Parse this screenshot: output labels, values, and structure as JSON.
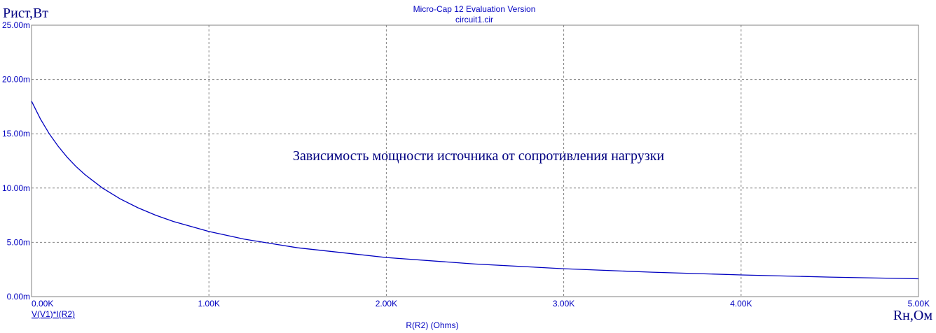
{
  "header": {
    "title": "Micro-Cap 12 Evaluation Version",
    "subtitle": "circuit1.cir"
  },
  "colors": {
    "axis_text": "#0000c0",
    "trace": "#0000c0",
    "annotation": "#000080",
    "grid": "#808080",
    "frame": "#808080"
  },
  "chart_data": {
    "type": "line",
    "title": "Micro-Cap 12 Evaluation Version",
    "subtitle": "circuit1.cir",
    "annotation": "Зависимость мощности источника от сопротивления нагрузки",
    "ylabel": "Рист,Вт",
    "xlabel_user": "Rн,Ом",
    "xlabel": "R(R2) (Ohms)",
    "grid": true,
    "xlim": [
      0,
      5000
    ],
    "ylim": [
      0,
      0.025
    ],
    "x_ticks": [
      {
        "value": 0,
        "label": "0.00K"
      },
      {
        "value": 1000,
        "label": "1.00K"
      },
      {
        "value": 2000,
        "label": "2.00K"
      },
      {
        "value": 3000,
        "label": "3.00K"
      },
      {
        "value": 4000,
        "label": "4.00K"
      },
      {
        "value": 5000,
        "label": "5.00K"
      }
    ],
    "y_ticks": [
      {
        "value": 0,
        "label": "0.00m"
      },
      {
        "value": 0.005,
        "label": "5.00m"
      },
      {
        "value": 0.01,
        "label": "10.00m"
      },
      {
        "value": 0.015,
        "label": "15.00m"
      },
      {
        "value": 0.02,
        "label": "20.00m"
      },
      {
        "value": 0.025,
        "label": "25.00m"
      }
    ],
    "series": [
      {
        "name": "V(V1)*I(R2)",
        "x": [
          0,
          50,
          100,
          150,
          200,
          250,
          300,
          400,
          500,
          600,
          700,
          800,
          1000,
          1200,
          1500,
          2000,
          2500,
          3000,
          3500,
          4000,
          4500,
          5000
        ],
        "y": [
          0.018,
          0.01636,
          0.015,
          0.01385,
          0.01286,
          0.012,
          0.01125,
          0.01,
          0.009,
          0.00818,
          0.0075,
          0.00692,
          0.006,
          0.00529,
          0.0045,
          0.0036,
          0.003,
          0.00257,
          0.00225,
          0.002,
          0.0018,
          0.00164
        ]
      }
    ]
  }
}
